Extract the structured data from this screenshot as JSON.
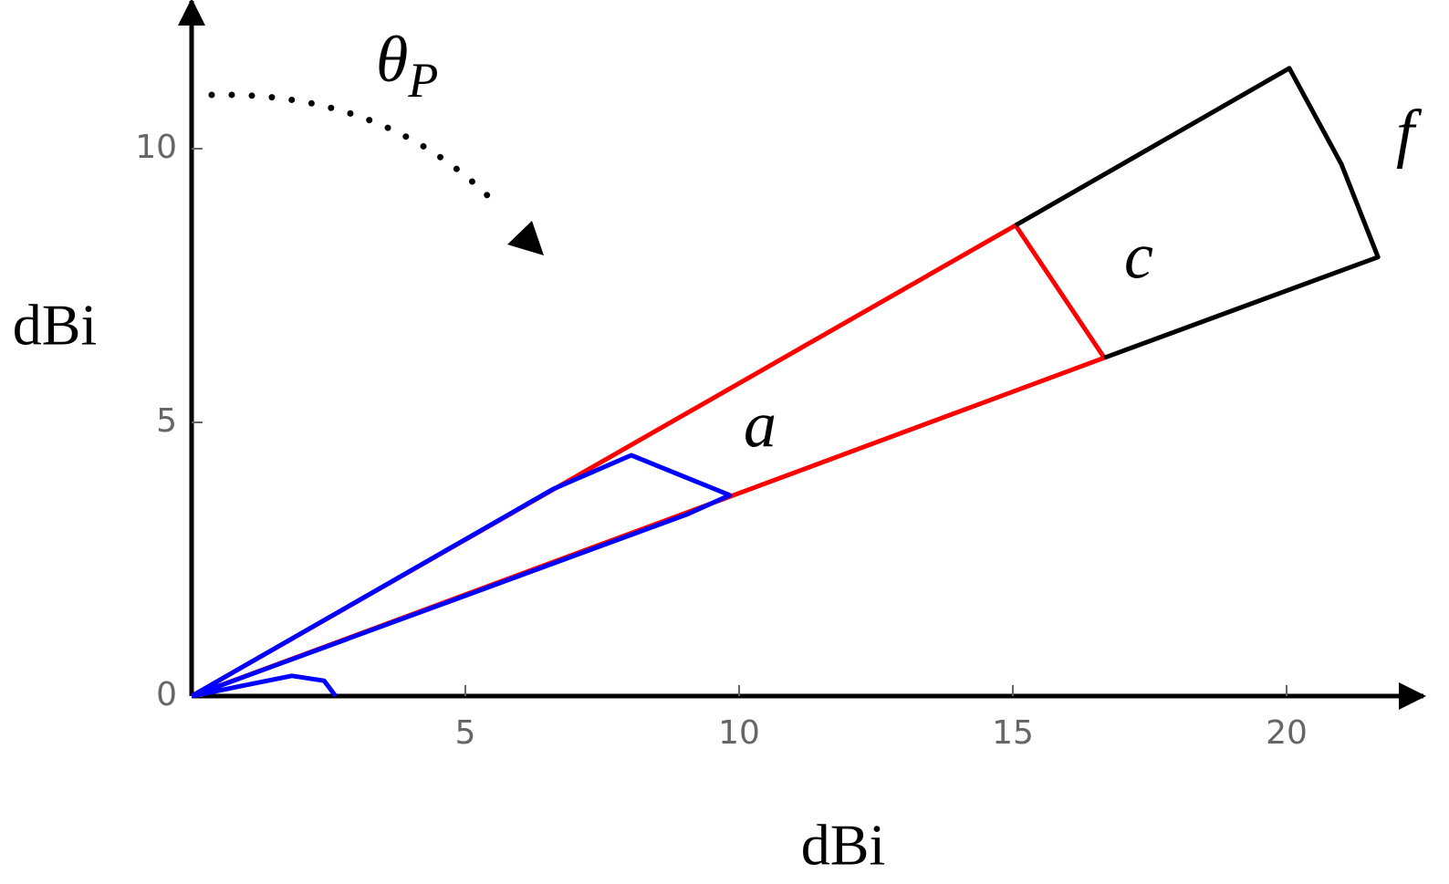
{
  "chart_data": {
    "type": "line",
    "xlabel": "dBi",
    "ylabel": "dBi",
    "xlim": [
      0,
      22.5
    ],
    "ylim": [
      0,
      12.7
    ],
    "xticks": [
      5,
      10,
      15,
      20
    ],
    "yticks": [
      0,
      5,
      10
    ],
    "annotation": {
      "symbol": "θ",
      "subscript": "P"
    },
    "series": [
      {
        "name": "a",
        "color": "#0000ff",
        "x": [
          0,
          6.6,
          8.03,
          9.83,
          9.05,
          0,
          null,
          0,
          1.83,
          2.42,
          2.63
        ],
        "values": [
          0,
          3.78,
          4.4,
          3.67,
          3.32,
          0,
          null,
          0,
          0.37,
          0.28,
          0
        ]
      },
      {
        "name": "c",
        "color": "#ff0000",
        "x": [
          0,
          15.05,
          16.67,
          0
        ],
        "values": [
          0,
          8.6,
          6.18,
          0
        ]
      },
      {
        "name": "f",
        "color": "#000000",
        "x": [
          15.05,
          20.05,
          21.0,
          21.67,
          16.67
        ],
        "values": [
          8.6,
          11.47,
          9.72,
          8.02,
          6.18
        ]
      }
    ]
  }
}
